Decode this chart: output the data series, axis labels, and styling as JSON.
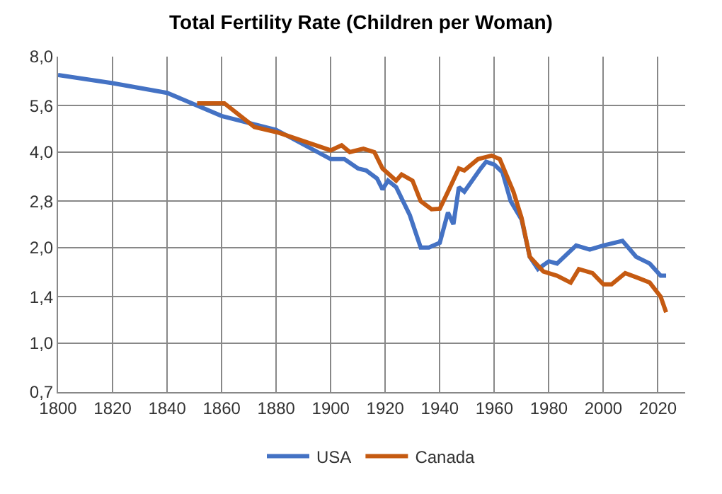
{
  "chart_data": {
    "type": "line",
    "title": "Total Fertility Rate (Children per Woman)",
    "log": true,
    "grid": true,
    "legend": "bottom",
    "marker": "none",
    "line_style": "solid",
    "xlim": [
      1800,
      2030
    ],
    "xticks": [
      1800,
      1820,
      1840,
      1860,
      1880,
      1900,
      1920,
      1940,
      1960,
      1980,
      2000,
      2020
    ],
    "ylim": [
      0.7,
      8
    ],
    "yticks": [
      {
        "value": 0.7,
        "label": "0,7"
      },
      {
        "value": 1,
        "label": "1,0"
      },
      {
        "value": 1.4,
        "label": "1,4"
      },
      {
        "value": 2,
        "label": "2,0"
      },
      {
        "value": 2.8,
        "label": "2,8"
      },
      {
        "value": 4,
        "label": "4,0"
      },
      {
        "value": 5.6,
        "label": "5,6"
      },
      {
        "value": 8,
        "label": "8,0"
      }
    ],
    "series": [
      {
        "name": "USA",
        "color": "#4472c4",
        "x": [
          1800,
          1820,
          1840,
          1860,
          1880,
          1900,
          1905,
          1910,
          1913,
          1917,
          1919,
          1921,
          1924,
          1929,
          1933,
          1936,
          1940,
          1943,
          1945,
          1947,
          1949,
          1955,
          1957,
          1960,
          1963,
          1966,
          1970,
          1973,
          1976,
          1980,
          1983,
          1990,
          1995,
          2000,
          2007,
          2012,
          2017,
          2021,
          2023
        ],
        "values": [
          7.0,
          6.6,
          6.15,
          5.2,
          4.7,
          3.8,
          3.8,
          3.55,
          3.5,
          3.3,
          3.05,
          3.25,
          3.1,
          2.53,
          2.0,
          2.0,
          2.07,
          2.58,
          2.37,
          3.1,
          3.0,
          3.55,
          3.73,
          3.65,
          3.45,
          2.8,
          2.45,
          1.87,
          1.71,
          1.81,
          1.78,
          2.03,
          1.97,
          2.03,
          2.1,
          1.87,
          1.78,
          1.63,
          1.63
        ]
      },
      {
        "name": "Canada",
        "color": "#c55a11",
        "x": [
          1851,
          1861,
          1872,
          1881,
          1900,
          1904,
          1907,
          1912,
          1916,
          1919,
          1924,
          1926,
          1930,
          1933,
          1937,
          1940,
          1943,
          1947,
          1949,
          1954,
          1959,
          1962,
          1967,
          1970,
          1973,
          1978,
          1983,
          1988,
          1991,
          1996,
          2000,
          2003,
          2008,
          2013,
          2017,
          2021,
          2023
        ],
        "values": [
          5.7,
          5.7,
          4.8,
          4.6,
          4.05,
          4.2,
          4.0,
          4.1,
          4.0,
          3.55,
          3.25,
          3.4,
          3.25,
          2.8,
          2.64,
          2.65,
          3.0,
          3.55,
          3.5,
          3.8,
          3.9,
          3.8,
          3.0,
          2.48,
          1.87,
          1.68,
          1.63,
          1.55,
          1.71,
          1.66,
          1.53,
          1.53,
          1.66,
          1.6,
          1.55,
          1.4,
          1.25
        ]
      }
    ]
  }
}
